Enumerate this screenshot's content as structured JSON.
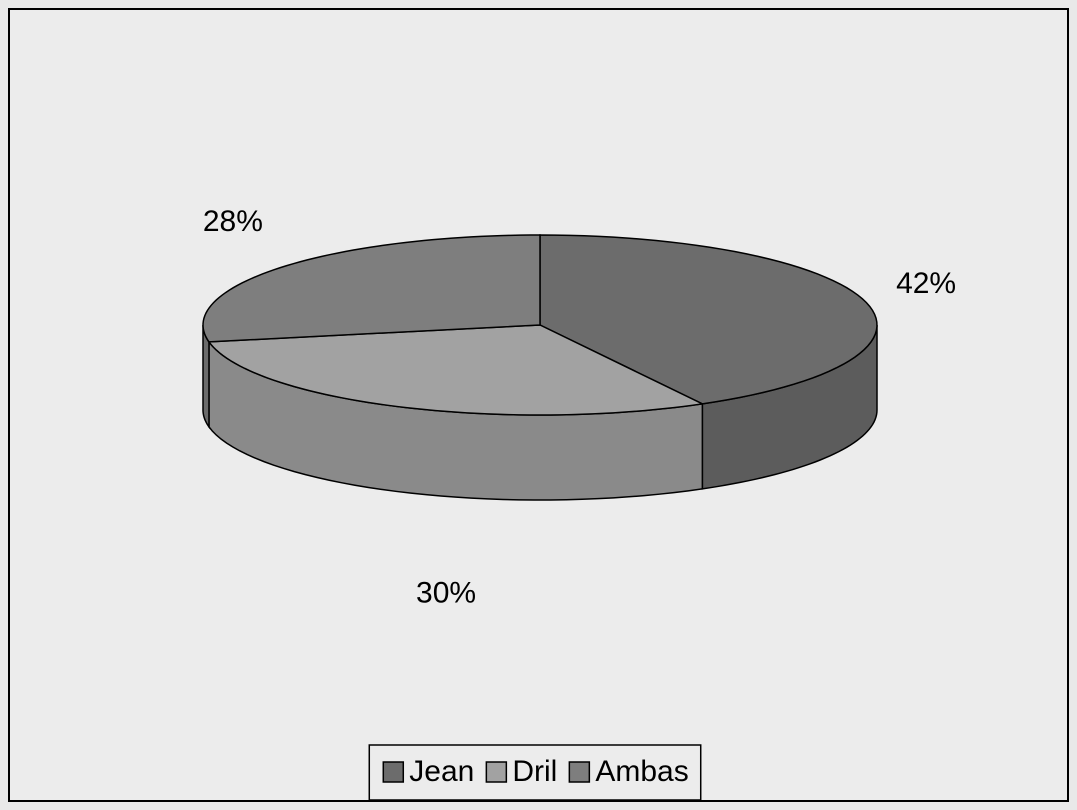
{
  "chart_data": {
    "type": "pie",
    "categories": [
      "Jean",
      "Dril",
      "Ambas"
    ],
    "values": [
      42,
      30,
      28
    ],
    "value_labels": [
      "42%",
      "30%",
      "28%"
    ],
    "colors": [
      "#6c6c6c",
      "#a2a2a2",
      "#7e7e7e"
    ],
    "legend": "bottom"
  }
}
